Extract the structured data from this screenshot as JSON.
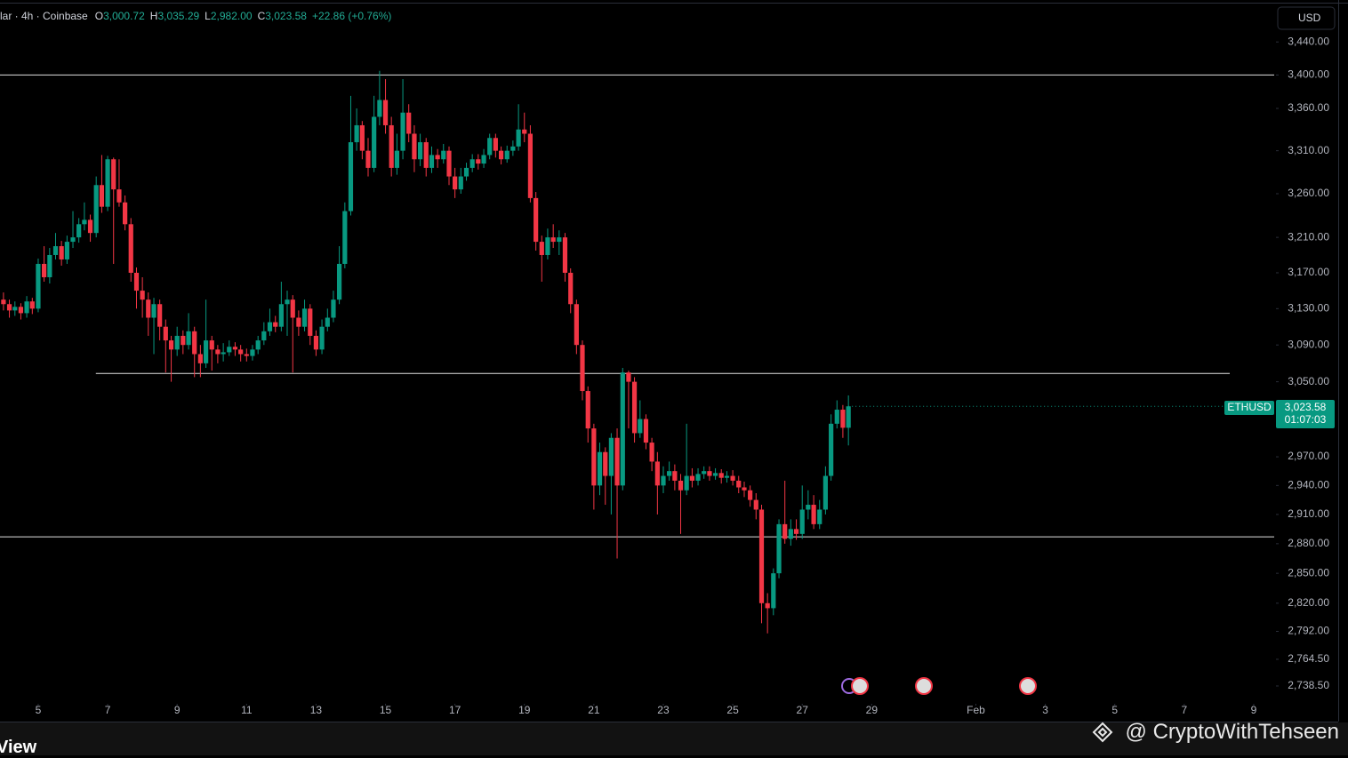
{
  "chart_data": {
    "type": "candlestick",
    "title": "lar · 4h · Coinbase",
    "ohlc_legend": [
      {
        "key": "O",
        "value": "3,000.72"
      },
      {
        "key": "H",
        "value": "3,035.29"
      },
      {
        "key": "L",
        "value": "2,982.00"
      },
      {
        "key": "C",
        "value": "3,023.58"
      }
    ],
    "change": "+22.86 (+0.76%)",
    "currency": "USD",
    "symbol": "ETHUSD",
    "last_price_label": "3,023.58",
    "last_price": 3023.58,
    "countdown": "01:07:03",
    "up_color": "#089981",
    "down_color": "#f23645",
    "log_scale": true,
    "ylim": [
      2723,
      3486
    ],
    "yticks": [
      {
        "value": 3440,
        "label": "3,440.00"
      },
      {
        "value": 3400,
        "label": "3,400.00"
      },
      {
        "value": 3360,
        "label": "3,360.00"
      },
      {
        "value": 3310,
        "label": "3,310.00"
      },
      {
        "value": 3260,
        "label": "3,260.00"
      },
      {
        "value": 3210,
        "label": "3,210.00"
      },
      {
        "value": 3170,
        "label": "3,170.00"
      },
      {
        "value": 3130,
        "label": "3,130.00"
      },
      {
        "value": 3090,
        "label": "3,090.00"
      },
      {
        "value": 3050,
        "label": "3,050.00"
      },
      {
        "value": 2970,
        "label": "2,970.00"
      },
      {
        "value": 2940,
        "label": "2,940.00"
      },
      {
        "value": 2910,
        "label": "2,910.00"
      },
      {
        "value": 2880,
        "label": "2,880.00"
      },
      {
        "value": 2850,
        "label": "2,850.00"
      },
      {
        "value": 2820,
        "label": "2,820.00"
      },
      {
        "value": 2792,
        "label": "2,792.00"
      },
      {
        "value": 2764.5,
        "label": "2,764.50"
      },
      {
        "value": 2738.5,
        "label": "2,738.50"
      }
    ],
    "xlim": [
      3.9,
      40.59
    ],
    "xticks": [
      5,
      7,
      9,
      11,
      13,
      15,
      17,
      19,
      21,
      23,
      25,
      27,
      29,
      {
        "value": 32,
        "label": "Feb"
      },
      {
        "value": 34,
        "label": "3"
      },
      {
        "value": 36,
        "label": "5"
      },
      {
        "value": 38,
        "label": "7"
      },
      {
        "value": 40,
        "label": "9"
      }
    ],
    "horizontal_lines": [
      {
        "value": 3400
      },
      {
        "value": 3059,
        "xlim": [
          6.66,
          39.31
        ]
      },
      {
        "value": 2887
      }
    ],
    "x": [
      4,
      4.17,
      4.33,
      4.5,
      4.67,
      4.83,
      5,
      5.17,
      5.33,
      5.5,
      5.67,
      5.83,
      6,
      6.17,
      6.33,
      6.5,
      6.67,
      6.83,
      7,
      7.17,
      7.33,
      7.5,
      7.67,
      7.83,
      8,
      8.17,
      8.33,
      8.5,
      8.67,
      8.83,
      9,
      9.17,
      9.33,
      9.5,
      9.67,
      9.83,
      10,
      10.17,
      10.33,
      10.5,
      10.67,
      10.83,
      11,
      11.17,
      11.33,
      11.5,
      11.67,
      11.83,
      12,
      12.17,
      12.33,
      12.5,
      12.67,
      12.83,
      13,
      13.17,
      13.33,
      13.5,
      13.67,
      13.83,
      14,
      14.17,
      14.33,
      14.5,
      14.67,
      14.83,
      15,
      15.17,
      15.33,
      15.5,
      15.67,
      15.83,
      16,
      16.17,
      16.33,
      16.5,
      16.67,
      16.83,
      17,
      17.17,
      17.33,
      17.5,
      17.67,
      17.83,
      18,
      18.17,
      18.33,
      18.5,
      18.67,
      18.83,
      19,
      19.17,
      19.33,
      19.5,
      19.67,
      19.83,
      20,
      20.17,
      20.33,
      20.5,
      20.67,
      20.83,
      21,
      21.17,
      21.33,
      21.5,
      21.67,
      21.83,
      22,
      22.17,
      22.33,
      22.5,
      22.67,
      22.83,
      23,
      23.17,
      23.33,
      23.5,
      23.67,
      23.83,
      24,
      24.17,
      24.33,
      24.5,
      24.67,
      24.83,
      25,
      25.17,
      25.33,
      25.5,
      25.67,
      25.83,
      26,
      26.17,
      26.33,
      26.5,
      26.67,
      26.83,
      27,
      27.17,
      27.33,
      27.5,
      27.67,
      27.83,
      28,
      28.17,
      28.33
    ],
    "open": [
      3140,
      3135,
      3128,
      3132,
      3125,
      3138,
      3130,
      3180,
      3165,
      3190,
      3200,
      3185,
      3205,
      3210,
      3225,
      3230,
      3215,
      3270,
      3245,
      3300,
      3265,
      3250,
      3225,
      3170,
      3150,
      3140,
      3120,
      3135,
      3110,
      3095,
      3085,
      3100,
      3090,
      3105,
      3080,
      3070,
      3095,
      3085,
      3080,
      3082,
      3088,
      3085,
      3080,
      3078,
      3085,
      3095,
      3105,
      3115,
      3110,
      3135,
      3140,
      3120,
      3110,
      3130,
      3100,
      3085,
      3110,
      3120,
      3140,
      3180,
      3240,
      3320,
      3340,
      3310,
      3290,
      3350,
      3370,
      3340,
      3290,
      3310,
      3355,
      3330,
      3300,
      3320,
      3290,
      3305,
      3300,
      3310,
      3280,
      3265,
      3280,
      3290,
      3300,
      3295,
      3305,
      3325,
      3310,
      3300,
      3310,
      3315,
      3335,
      3330,
      3255,
      3205,
      3190,
      3210,
      3205,
      3210,
      3170,
      3135,
      3090,
      3040,
      3000,
      2940,
      2975,
      2950,
      2990,
      2940,
      3060,
      3050,
      2995,
      3010,
      2985,
      2965,
      2940,
      2950,
      2955,
      2945,
      2935,
      2950,
      2945,
      2952,
      2955,
      2950,
      2953,
      2948,
      2950,
      2945,
      2938,
      2935,
      2925,
      2915,
      2820,
      2815,
      2850,
      2900,
      2885,
      2895,
      2890,
      2915,
      2920,
      2900,
      2915,
      2950,
      3005,
      3020,
      3000.72
    ],
    "high": [
      3148,
      3140,
      3138,
      3136,
      3144,
      3142,
      3186,
      3200,
      3198,
      3215,
      3206,
      3212,
      3240,
      3232,
      3250,
      3236,
      3280,
      3305,
      3304,
      3302,
      3300,
      3258,
      3232,
      3176,
      3165,
      3148,
      3142,
      3140,
      3118,
      3100,
      3110,
      3106,
      3125,
      3110,
      3090,
      3140,
      3100,
      3090,
      3092,
      3095,
      3093,
      3090,
      3086,
      3090,
      3100,
      3115,
      3130,
      3122,
      3160,
      3150,
      3145,
      3128,
      3140,
      3135,
      3106,
      3118,
      3130,
      3150,
      3200,
      3250,
      3375,
      3360,
      3345,
      3325,
      3375,
      3405,
      3395,
      3350,
      3330,
      3395,
      3365,
      3340,
      3330,
      3325,
      3315,
      3312,
      3318,
      3315,
      3290,
      3290,
      3296,
      3306,
      3306,
      3312,
      3330,
      3330,
      3315,
      3316,
      3322,
      3365,
      3355,
      3340,
      3262,
      3212,
      3220,
      3225,
      3218,
      3215,
      3175,
      3140,
      3095,
      3045,
      3005,
      2985,
      2980,
      2995,
      3000,
      3065,
      3062,
      3055,
      3030,
      3015,
      2990,
      2975,
      2960,
      2965,
      2962,
      2952,
      3005,
      2958,
      2958,
      2960,
      2960,
      2958,
      2957,
      2955,
      2956,
      2950,
      2944,
      2940,
      2932,
      2920,
      2830,
      2855,
      2905,
      2945,
      2905,
      2905,
      2940,
      2935,
      2930,
      2925,
      2960,
      3015,
      3030,
      3025,
      3035.29
    ],
    "low": [
      3128,
      3120,
      3122,
      3118,
      3120,
      3124,
      3126,
      3160,
      3158,
      3185,
      3178,
      3180,
      3198,
      3204,
      3218,
      3205,
      3210,
      3238,
      3240,
      3180,
      3245,
      3218,
      3160,
      3130,
      3120,
      3100,
      3080,
      3095,
      3060,
      3050,
      3078,
      3080,
      3085,
      3055,
      3055,
      3065,
      3062,
      3070,
      3072,
      3078,
      3078,
      3072,
      3072,
      3073,
      3080,
      3090,
      3100,
      3104,
      3105,
      3100,
      3060,
      3100,
      3105,
      3090,
      3078,
      3080,
      3105,
      3115,
      3135,
      3175,
      3235,
      3310,
      3300,
      3280,
      3285,
      3340,
      3330,
      3280,
      3282,
      3300,
      3320,
      3285,
      3292,
      3280,
      3284,
      3290,
      3295,
      3270,
      3255,
      3260,
      3275,
      3285,
      3288,
      3290,
      3300,
      3302,
      3294,
      3296,
      3304,
      3310,
      3320,
      3250,
      3195,
      3160,
      3185,
      3198,
      3190,
      3160,
      3125,
      3080,
      3030,
      2985,
      2915,
      2930,
      2920,
      2910,
      2865,
      2935,
      3000,
      2985,
      2990,
      2978,
      2955,
      2910,
      2932,
      2945,
      2935,
      2890,
      2930,
      2938,
      2940,
      2947,
      2945,
      2946,
      2942,
      2943,
      2940,
      2932,
      2928,
      2918,
      2905,
      2800,
      2790,
      2808,
      2845,
      2880,
      2878,
      2884,
      2885,
      2905,
      2895,
      2895,
      2910,
      2945,
      3000,
      2990,
      2982
    ],
    "close": [
      3135,
      3128,
      3132,
      3125,
      3138,
      3130,
      3180,
      3165,
      3190,
      3200,
      3185,
      3205,
      3210,
      3225,
      3230,
      3215,
      3270,
      3245,
      3300,
      3265,
      3250,
      3225,
      3170,
      3150,
      3140,
      3120,
      3135,
      3110,
      3095,
      3085,
      3100,
      3090,
      3105,
      3080,
      3070,
      3095,
      3085,
      3080,
      3082,
      3088,
      3085,
      3080,
      3078,
      3085,
      3095,
      3105,
      3115,
      3110,
      3135,
      3140,
      3120,
      3110,
      3130,
      3100,
      3085,
      3110,
      3120,
      3140,
      3180,
      3240,
      3320,
      3340,
      3310,
      3290,
      3350,
      3370,
      3340,
      3290,
      3310,
      3355,
      3330,
      3300,
      3320,
      3290,
      3305,
      3300,
      3310,
      3280,
      3265,
      3280,
      3290,
      3300,
      3295,
      3305,
      3325,
      3310,
      3300,
      3310,
      3315,
      3335,
      3330,
      3255,
      3205,
      3190,
      3210,
      3205,
      3210,
      3170,
      3135,
      3090,
      3040,
      3000,
      2940,
      2975,
      2950,
      2990,
      2940,
      3060,
      3050,
      2995,
      3010,
      2985,
      2965,
      2940,
      2950,
      2955,
      2945,
      2935,
      2950,
      2945,
      2952,
      2955,
      2950,
      2953,
      2948,
      2950,
      2945,
      2938,
      2935,
      2925,
      2915,
      2820,
      2815,
      2850,
      2900,
      2885,
      2895,
      2890,
      2915,
      2920,
      2900,
      2915,
      2950,
      3005,
      3020,
      3000.72,
      3023.58
    ]
  },
  "footer": {
    "brand": "View",
    "watermark": "@ CryptoWithTehseen"
  }
}
